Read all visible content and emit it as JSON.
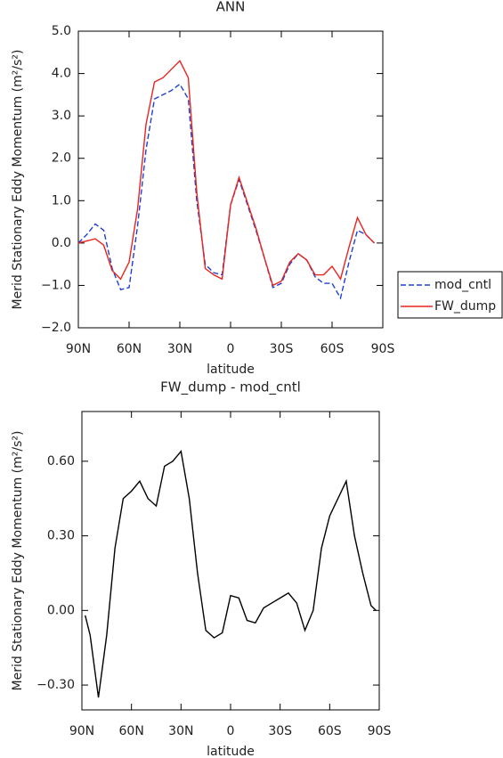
{
  "chart_data": [
    {
      "type": "line",
      "title": "ANN",
      "xlabel": "latitude",
      "ylabel": "Merid Stationary Eddy Momentum (m²/s²)",
      "x": [
        90,
        85,
        80,
        75,
        70,
        65,
        60,
        55,
        50,
        45,
        40,
        35,
        30,
        25,
        20,
        15,
        10,
        5,
        0,
        -5,
        -10,
        -15,
        -20,
        -25,
        -30,
        -35,
        -40,
        -45,
        -50,
        -55,
        -60,
        -65,
        -70,
        -75,
        -80,
        -85
      ],
      "series": [
        {
          "name": "mod_cntl",
          "color": "#1f3fd6",
          "dash": true,
          "values": [
            0.0,
            0.2,
            0.45,
            0.3,
            -0.6,
            -1.1,
            -1.05,
            0.4,
            2.2,
            3.4,
            3.5,
            3.6,
            3.75,
            3.4,
            1.0,
            -0.5,
            -0.7,
            -0.75,
            0.9,
            1.5,
            0.9,
            0.3,
            -0.35,
            -1.05,
            -0.95,
            -0.5,
            -0.25,
            -0.4,
            -0.8,
            -0.95,
            -0.95,
            -1.3,
            -0.45,
            0.3,
            0.2,
            0.0
          ]
        },
        {
          "name": "FW_dump",
          "color": "#e8241e",
          "dash": false,
          "values": [
            0.0,
            0.05,
            0.1,
            -0.05,
            -0.65,
            -0.85,
            -0.45,
            0.8,
            2.8,
            3.8,
            3.9,
            4.1,
            4.3,
            3.9,
            1.2,
            -0.6,
            -0.75,
            -0.85,
            0.9,
            1.55,
            0.95,
            0.35,
            -0.35,
            -1.0,
            -0.9,
            -0.45,
            -0.25,
            -0.4,
            -0.75,
            -0.75,
            -0.55,
            -0.85,
            -0.1,
            0.6,
            0.2,
            0.0
          ]
        }
      ],
      "xlim": [
        90,
        -90
      ],
      "xticks": [
        {
          "value": 90,
          "label": "90N"
        },
        {
          "value": 60,
          "label": "60N"
        },
        {
          "value": 30,
          "label": "30N"
        },
        0,
        {
          "value": -30,
          "label": "30S"
        },
        {
          "value": -60,
          "label": "60S"
        },
        {
          "value": -90,
          "label": "90S"
        }
      ],
      "ylim": [
        -2,
        5
      ],
      "yticks": [
        {
          "value": -2,
          "label": "−2.0"
        },
        {
          "value": -1,
          "label": "−1.0"
        },
        {
          "value": 0,
          "label": "0.0"
        },
        {
          "value": 1,
          "label": "1.0"
        },
        {
          "value": 2,
          "label": "2.0"
        },
        {
          "value": 3,
          "label": "3.0"
        },
        {
          "value": 4,
          "label": "4.0"
        },
        {
          "value": 5,
          "label": "5.0"
        }
      ],
      "legend": "right"
    },
    {
      "type": "line",
      "title": "FW_dump - mod_cntl",
      "xlabel": "latitude",
      "ylabel": "Merid Stationary Eddy Momentum (m²/s²)",
      "x": [
        88,
        85,
        80,
        75,
        70,
        65,
        60,
        55,
        50,
        45,
        40,
        35,
        30,
        25,
        20,
        15,
        10,
        5,
        0,
        -5,
        -10,
        -15,
        -20,
        -25,
        -30,
        -35,
        -40,
        -45,
        -50,
        -55,
        -60,
        -65,
        -70,
        -75,
        -80,
        -85,
        -88
      ],
      "series": [
        {
          "color": "#000000",
          "dash": false,
          "values": [
            -0.02,
            -0.1,
            -0.35,
            -0.1,
            0.25,
            0.45,
            0.48,
            0.52,
            0.45,
            0.42,
            0.58,
            0.6,
            0.64,
            0.45,
            0.15,
            -0.08,
            -0.11,
            -0.09,
            0.06,
            0.05,
            -0.04,
            -0.05,
            0.01,
            0.03,
            0.05,
            0.07,
            0.03,
            -0.08,
            0.0,
            0.25,
            0.38,
            0.45,
            0.52,
            0.3,
            0.15,
            0.02,
            0.0
          ]
        }
      ],
      "xlim": [
        90,
        -90
      ],
      "xticks": [
        {
          "value": 90,
          "label": "90N"
        },
        {
          "value": 60,
          "label": "60N"
        },
        {
          "value": 30,
          "label": "30N"
        },
        0,
        {
          "value": -30,
          "label": "30S"
        },
        {
          "value": -60,
          "label": "60S"
        },
        {
          "value": -90,
          "label": "90S"
        }
      ],
      "ylim": [
        -0.4,
        0.8
      ],
      "yticks": [
        {
          "value": -0.3,
          "label": "−0.30"
        },
        {
          "value": 0,
          "label": "0.00"
        },
        {
          "value": 0.3,
          "label": "0.30"
        },
        {
          "value": 0.6,
          "label": "0.60"
        }
      ]
    }
  ]
}
